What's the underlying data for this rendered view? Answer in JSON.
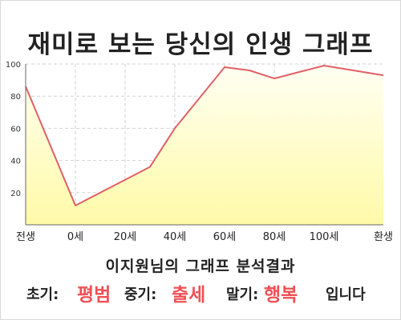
{
  "title": "재미로 보는 당신의 인생 그래프",
  "subtitle": "이지원님의 그래프 분석결과",
  "result": {
    "early_label": "초기:",
    "early_value": "평범",
    "mid_label": "중기:",
    "mid_value": "출세",
    "late_label": "말기:",
    "late_value": "행복",
    "ending": "입니다"
  },
  "colors": {
    "line": "#e06066",
    "fill_top": "#fffff2",
    "fill_bottom": "#fffaa8",
    "accent": "#f05055"
  },
  "chart_data": {
    "type": "area",
    "x_ticks": [
      "전생",
      "0세",
      "20세",
      "40세",
      "60세",
      "80세",
      "100세",
      "환생"
    ],
    "y_ticks": [
      20,
      40,
      60,
      80,
      100
    ],
    "ylim": [
      0,
      100
    ],
    "grid": true,
    "points": [
      {
        "x": "전생",
        "y": 86
      },
      {
        "x": "0세",
        "y": 12
      },
      {
        "x": "20세",
        "y": 28
      },
      {
        "x": "30세",
        "y": 36
      },
      {
        "x": "40세",
        "y": 60
      },
      {
        "x": "60세",
        "y": 98
      },
      {
        "x": "70세",
        "y": 96
      },
      {
        "x": "80세",
        "y": 91
      },
      {
        "x": "100세",
        "y": 99
      },
      {
        "x": "환생",
        "y": 93
      }
    ]
  }
}
